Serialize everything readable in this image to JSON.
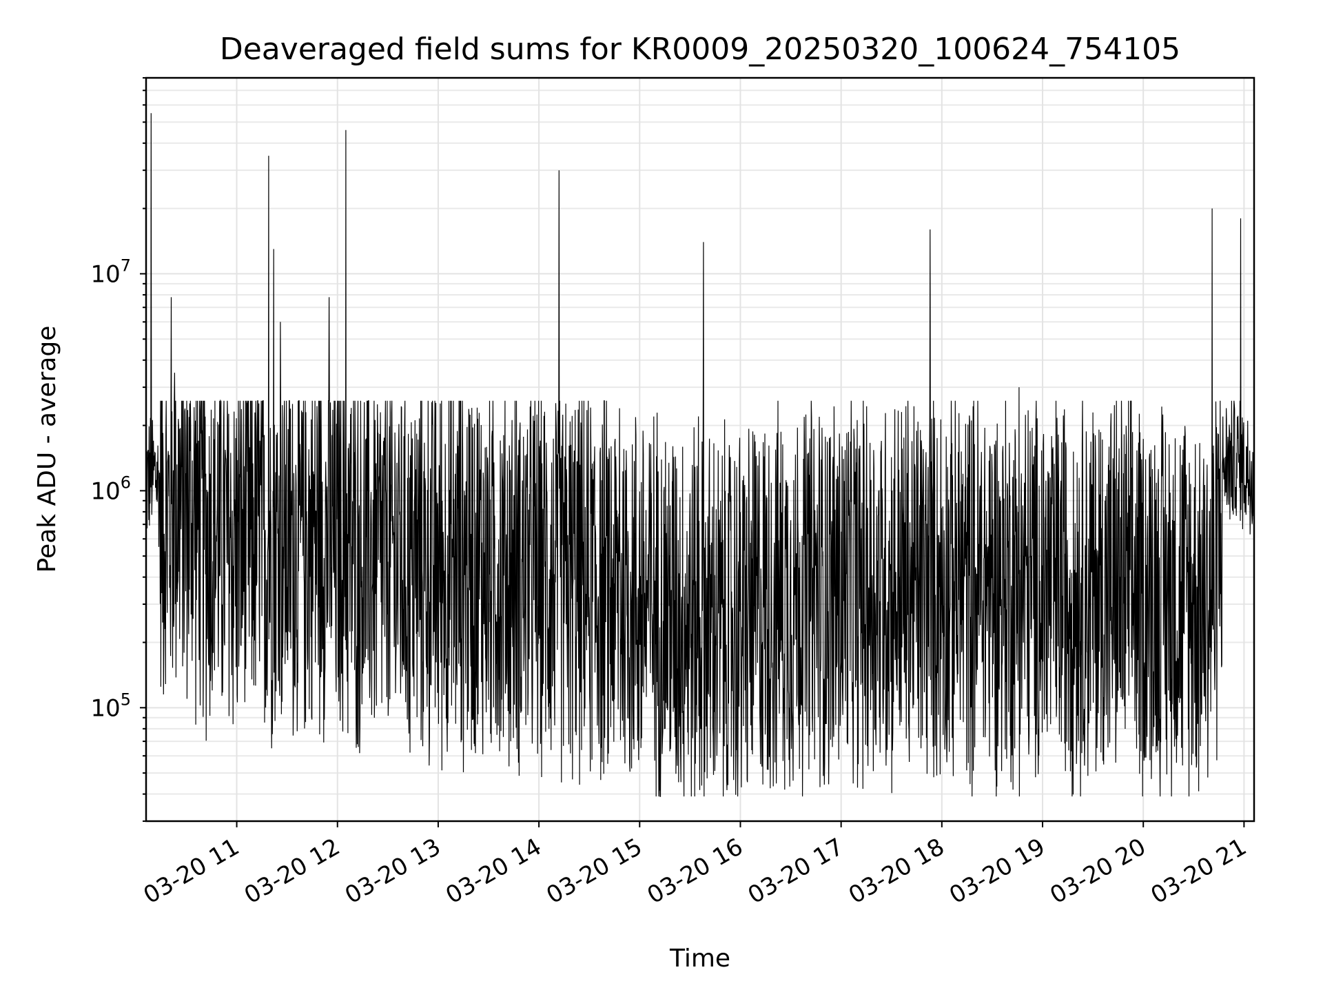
{
  "chart_data": {
    "type": "line",
    "title": "Deaveraged field sums for KR0009_20250320_100624_754105",
    "xlabel": "Time",
    "ylabel": "Peak ADU - average",
    "y_scale": "log",
    "xlim": [
      "2025-03-20 10:06",
      "2025-03-20 21:06"
    ],
    "ylim": [
      30000,
      80000000
    ],
    "grid": true,
    "legend": "none",
    "x_ticks": [
      "03-20 11",
      "03-20 12",
      "03-20 13",
      "03-20 14",
      "03-20 15",
      "03-20 16",
      "03-20 17",
      "03-20 18",
      "03-20 19",
      "03-20 20",
      "03-20 21"
    ],
    "y_ticks": [
      {
        "base": "10",
        "exp": "5",
        "value": 100000
      },
      {
        "base": "10",
        "exp": "6",
        "value": 1000000
      },
      {
        "base": "10",
        "exp": "7",
        "value": 10000000
      }
    ],
    "series": [
      {
        "color": "#000000",
        "x": [
          "2025-03-20 10:06",
          "2025-03-20 10:12",
          "2025-03-20 10:18",
          "2025-03-20 10:24",
          "2025-03-20 10:30",
          "2025-03-20 10:36",
          "2025-03-20 10:42",
          "2025-03-20 10:48",
          "2025-03-20 10:54",
          "2025-03-20 11:00",
          "2025-03-20 11:06",
          "2025-03-20 11:12",
          "2025-03-20 11:18",
          "2025-03-20 11:24",
          "2025-03-20 11:30",
          "2025-03-20 11:36",
          "2025-03-20 11:42",
          "2025-03-20 11:48",
          "2025-03-20 11:54",
          "2025-03-20 12:00",
          "2025-03-20 12:06",
          "2025-03-20 12:12",
          "2025-03-20 12:18",
          "2025-03-20 12:24",
          "2025-03-20 12:30",
          "2025-03-20 12:36",
          "2025-03-20 12:42",
          "2025-03-20 12:48",
          "2025-03-20 12:54",
          "2025-03-20 13:00",
          "2025-03-20 13:06",
          "2025-03-20 13:12",
          "2025-03-20 13:18",
          "2025-03-20 13:24",
          "2025-03-20 13:30",
          "2025-03-20 13:36",
          "2025-03-20 13:42",
          "2025-03-20 13:48",
          "2025-03-20 13:54",
          "2025-03-20 14:00",
          "2025-03-20 14:06",
          "2025-03-20 14:12",
          "2025-03-20 14:18",
          "2025-03-20 14:24",
          "2025-03-20 14:30",
          "2025-03-20 14:36",
          "2025-03-20 14:42",
          "2025-03-20 14:48",
          "2025-03-20 14:54",
          "2025-03-20 15:00",
          "2025-03-20 15:06",
          "2025-03-20 15:12",
          "2025-03-20 15:18",
          "2025-03-20 15:24",
          "2025-03-20 15:30",
          "2025-03-20 15:36",
          "2025-03-20 15:42",
          "2025-03-20 15:48",
          "2025-03-20 15:54",
          "2025-03-20 16:00",
          "2025-03-20 16:06",
          "2025-03-20 16:12",
          "2025-03-20 16:18",
          "2025-03-20 16:24",
          "2025-03-20 16:30",
          "2025-03-20 16:36",
          "2025-03-20 16:42",
          "2025-03-20 16:48",
          "2025-03-20 16:54",
          "2025-03-20 17:00",
          "2025-03-20 17:06",
          "2025-03-20 17:12",
          "2025-03-20 17:18",
          "2025-03-20 17:24",
          "2025-03-20 17:30",
          "2025-03-20 17:36",
          "2025-03-20 17:42",
          "2025-03-20 17:48",
          "2025-03-20 17:54",
          "2025-03-20 18:00",
          "2025-03-20 18:06",
          "2025-03-20 18:12",
          "2025-03-20 18:18",
          "2025-03-20 18:24",
          "2025-03-20 18:30",
          "2025-03-20 18:36",
          "2025-03-20 18:42",
          "2025-03-20 18:48",
          "2025-03-20 18:54",
          "2025-03-20 19:00",
          "2025-03-20 19:06",
          "2025-03-20 19:12",
          "2025-03-20 19:18",
          "2025-03-20 19:24",
          "2025-03-20 19:30",
          "2025-03-20 19:36",
          "2025-03-20 19:42",
          "2025-03-20 19:48",
          "2025-03-20 19:54",
          "2025-03-20 20:00",
          "2025-03-20 20:06",
          "2025-03-20 20:12",
          "2025-03-20 20:18",
          "2025-03-20 20:24",
          "2025-03-20 20:30",
          "2025-03-20 20:36",
          "2025-03-20 20:42",
          "2025-03-20 20:48",
          "2025-03-20 20:54",
          "2025-03-20 21:00",
          "2025-03-20 21:06"
        ],
        "mean": [
          1100000,
          1200000,
          700000,
          900000,
          800000,
          750000,
          600000,
          650000,
          550000,
          550000,
          600000,
          650000,
          550000,
          600000,
          600000,
          550000,
          600000,
          650000,
          600000,
          550000,
          550000,
          500000,
          500000,
          500000,
          500000,
          500000,
          450000,
          450000,
          450000,
          450000,
          450000,
          450000,
          450000,
          450000,
          450000,
          420000,
          420000,
          420000,
          420000,
          400000,
          400000,
          400000,
          380000,
          380000,
          380000,
          350000,
          350000,
          330000,
          330000,
          320000,
          300000,
          300000,
          280000,
          270000,
          260000,
          250000,
          240000,
          230000,
          230000,
          250000,
          270000,
          290000,
          300000,
          320000,
          330000,
          330000,
          340000,
          340000,
          340000,
          350000,
          350000,
          350000,
          350000,
          350000,
          360000,
          360000,
          360000,
          360000,
          370000,
          370000,
          370000,
          370000,
          370000,
          370000,
          370000,
          370000,
          360000,
          360000,
          360000,
          360000,
          360000,
          360000,
          360000,
          350000,
          350000,
          350000,
          350000,
          340000,
          340000,
          340000,
          340000,
          330000,
          330000,
          320000,
          330000,
          330000,
          340000,
          1300000,
          1400000,
          1300000,
          1200000
        ],
        "spikes": [
          {
            "x": "2025-03-20 10:09",
            "y": 55000000
          },
          {
            "x": "2025-03-20 10:21",
            "y": 7800000
          },
          {
            "x": "2025-03-20 10:23",
            "y": 3500000
          },
          {
            "x": "2025-03-20 11:19",
            "y": 35000000
          },
          {
            "x": "2025-03-20 11:22",
            "y": 13000000
          },
          {
            "x": "2025-03-20 11:26",
            "y": 6000000
          },
          {
            "x": "2025-03-20 11:55",
            "y": 7800000
          },
          {
            "x": "2025-03-20 12:05",
            "y": 46000000
          },
          {
            "x": "2025-03-20 14:12",
            "y": 30000000
          },
          {
            "x": "2025-03-20 14:48",
            "y": 2400000
          },
          {
            "x": "2025-03-20 15:35",
            "y": 2200000
          },
          {
            "x": "2025-03-20 15:38",
            "y": 14000000
          },
          {
            "x": "2025-03-20 17:53",
            "y": 16000000
          },
          {
            "x": "2025-03-20 18:46",
            "y": 3000000
          },
          {
            "x": "2025-03-20 20:41",
            "y": 20000000
          },
          {
            "x": "2025-03-20 20:58",
            "y": 18000000
          }
        ]
      }
    ]
  }
}
